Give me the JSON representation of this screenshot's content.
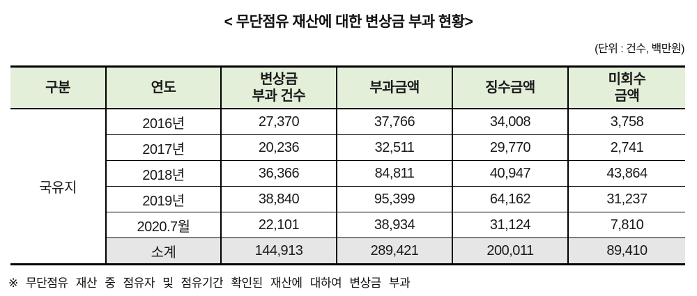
{
  "title": "< 무단점유 재산에 대한 변상금 부과 현황>",
  "unit_note": "(단위 : 건수, 백만원)",
  "table": {
    "headers": [
      "구분",
      "연도",
      "변상금\n부과 건수",
      "부과금액",
      "징수금액",
      "미회수\n금액"
    ],
    "group_label": "국유지",
    "rows": [
      {
        "year": "2016년",
        "values": [
          "27,370",
          "37,766",
          "34,008",
          "3,758"
        ]
      },
      {
        "year": "2017년",
        "values": [
          "20,236",
          "32,511",
          "29,770",
          "2,741"
        ]
      },
      {
        "year": "2018년",
        "values": [
          "36,366",
          "84,811",
          "40,947",
          "43,864"
        ]
      },
      {
        "year": "2019년",
        "values": [
          "38,840",
          "95,399",
          "64,162",
          "31,237"
        ]
      },
      {
        "year": "2020.7월",
        "values": [
          "22,101",
          "38,934",
          "31,124",
          "7,810"
        ]
      },
      {
        "year": "소계",
        "values": [
          "144,913",
          "289,421",
          "200,011",
          "89,410"
        ]
      }
    ]
  },
  "footnote": "※ 무단점유 재산 중 점유자 및 점유기간 확인된 재산에 대하여 변상금 부과",
  "colors": {
    "header_bg": "#e3efd9",
    "subtotal_bg": "#e6e6e6",
    "border": "#000000"
  }
}
